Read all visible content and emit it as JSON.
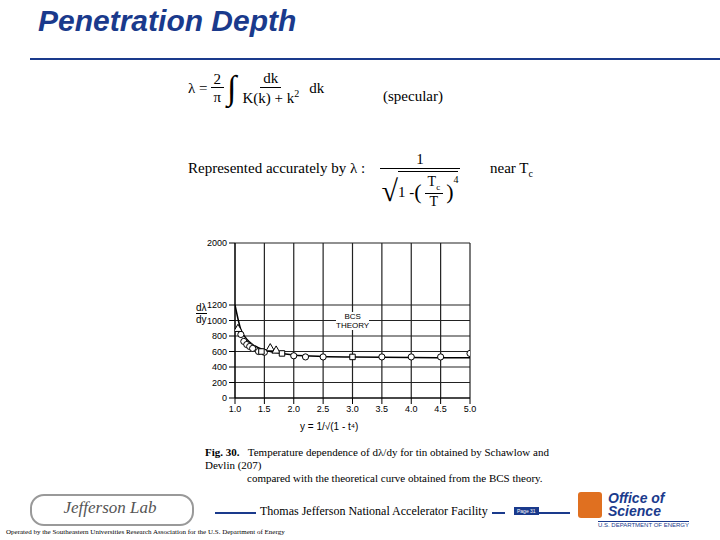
{
  "title": "Penetration Depth",
  "formulas": {
    "specular": {
      "lhs": "λ =",
      "coef_num": "2",
      "coef_den": "π",
      "integral": "∫",
      "integrand_num": "dk",
      "integrand_den": "K(k) + k",
      "integrand_den_sup": "2",
      "tail": "dk",
      "note": "(specular)"
    },
    "approx": {
      "prefix": "Represented accurately by λ :",
      "num": "1",
      "root_prefix": "1 -",
      "frac_num": "T",
      "frac_num_sub": "c",
      "frac_den": "T",
      "power": "4",
      "suffix": "near T",
      "suffix_sub": "c"
    }
  },
  "chart_data": {
    "type": "scatter",
    "xlabel": "y = 1/√(1 - t⁴)",
    "ylabel": {
      "num": "dλ",
      "den": "dy"
    },
    "annotations": [
      {
        "text": [
          "BCS",
          "THEORY"
        ]
      }
    ],
    "xlim": [
      1,
      5
    ],
    "xticks": [
      {
        "value": 1,
        "label": "1.0"
      },
      1.5,
      {
        "value": 2,
        "label": "2.0"
      },
      2.5,
      {
        "value": 3,
        "label": "3.0"
      },
      3.5,
      {
        "value": 4,
        "label": "4.0"
      },
      4.5,
      {
        "value": 5,
        "label": "5.0"
      }
    ],
    "ylim": [
      0,
      2000
    ],
    "yticks": [
      0,
      200,
      400,
      600,
      800,
      1000,
      1200,
      2000
    ],
    "grid": true,
    "series": [
      {
        "type": "line",
        "marker": "none",
        "line_style": "solid",
        "color": "#000000",
        "x": [
          1.0,
          1.1,
          1.2,
          1.3,
          1.5,
          1.75,
          2.0,
          2.5,
          3.0,
          4.0,
          5.0
        ],
        "values": [
          1200,
          880,
          760,
          690,
          620,
          580,
          555,
          535,
          528,
          522,
          520
        ]
      },
      {
        "type": "scatter",
        "marker": "circle",
        "color": "#000000",
        "x": [
          1.1,
          1.15,
          1.2,
          1.25,
          1.3,
          1.4,
          1.5,
          2.0,
          2.2,
          2.5,
          3.5,
          4.0,
          4.5,
          5.0
        ],
        "values": [
          820,
          730,
          690,
          665,
          640,
          600,
          590,
          545,
          530,
          530,
          530,
          530,
          530,
          575
        ]
      },
      {
        "type": "scatter",
        "marker": "triangle",
        "color": "#000000",
        "x": [
          1.05,
          1.6,
          1.7
        ],
        "values": [
          890,
          640,
          610
        ]
      },
      {
        "type": "scatter",
        "marker": "square",
        "color": "#000000",
        "x": [
          1.45,
          1.8,
          3.0
        ],
        "values": [
          600,
          575,
          530
        ]
      }
    ]
  },
  "caption": {
    "label": "Fig. 30.",
    "lines": [
      "Temperature dependence of dλ/dy for tin obtained by Schawlow and Devlin (207)",
      "compared with the theoretical curve obtained from the BCS theory."
    ]
  },
  "footer": {
    "center": "Thomas Jefferson National Accelerator Facility",
    "operated": "Operated by the Southeastern Universities Research Association for the U.S. Department of Energy",
    "left_logo": "Jefferson Lab",
    "page": "Page 31",
    "right_logo": [
      "Office of",
      "Science"
    ],
    "right_logo_sub": "U.S. DEPARTMENT OF ENERGY"
  }
}
